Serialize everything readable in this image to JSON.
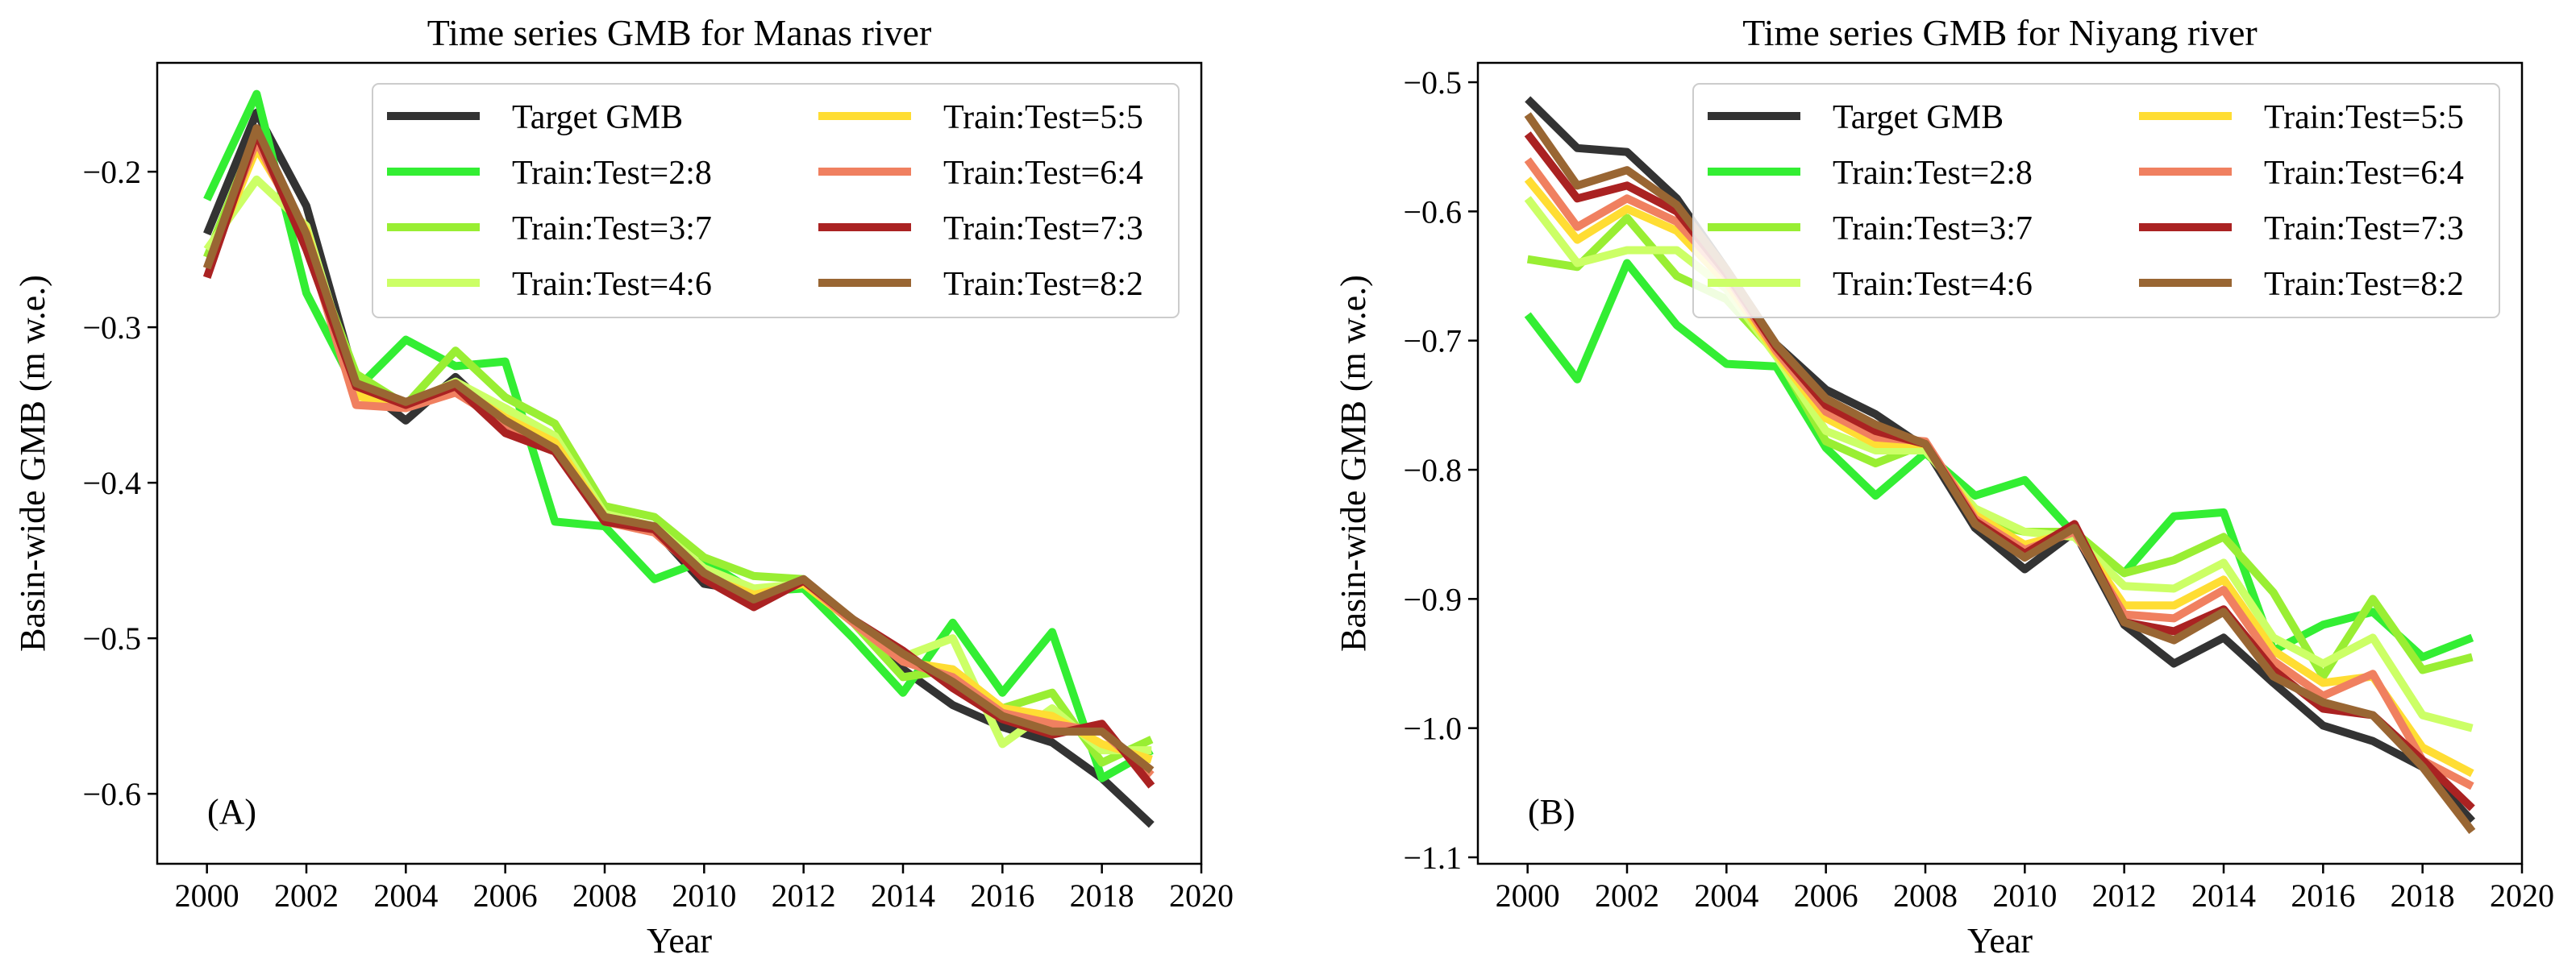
{
  "chart_data": [
    {
      "type": "line",
      "title": "Time series GMB for Manas river",
      "xlabel": "Year",
      "ylabel": "Basin-wide GMB (m w.e.)",
      "panel_label": "(A)",
      "xlim": [
        1999,
        2020
      ],
      "ylim": [
        -0.645,
        -0.13
      ],
      "xticks": [
        2000,
        2002,
        2004,
        2006,
        2008,
        2010,
        2012,
        2014,
        2016,
        2018,
        2020
      ],
      "xtick_labels": [
        "2000",
        "2002",
        "2004",
        "2006",
        "2008",
        "2010",
        "2012",
        "2014",
        "2016",
        "2018",
        "2020"
      ],
      "yticks": [
        -0.6,
        -0.5,
        -0.4,
        -0.3,
        -0.2
      ],
      "ytick_labels": [
        "−0.6",
        "−0.5",
        "−0.4",
        "−0.3",
        "−0.2"
      ],
      "grid": false,
      "legend_position": "top-right",
      "legend_columns": 2,
      "x": [
        2000,
        2001,
        2002,
        2003,
        2004,
        2005,
        2006,
        2007,
        2008,
        2009,
        2010,
        2011,
        2012,
        2013,
        2014,
        2015,
        2016,
        2017,
        2018,
        2019
      ],
      "series": [
        {
          "name": "Target GMB",
          "color": "#333333",
          "values": [
            -0.24,
            -0.162,
            -0.222,
            -0.335,
            -0.36,
            -0.332,
            -0.362,
            -0.38,
            -0.42,
            -0.43,
            -0.465,
            -0.47,
            -0.465,
            -0.49,
            -0.52,
            -0.543,
            -0.557,
            -0.567,
            -0.59,
            -0.62
          ]
        },
        {
          "name": "Train:Test=2:8",
          "color": "#33ee33",
          "values": [
            -0.218,
            -0.15,
            -0.278,
            -0.34,
            -0.308,
            -0.325,
            -0.322,
            -0.425,
            -0.428,
            -0.462,
            -0.45,
            -0.47,
            -0.468,
            -0.5,
            -0.535,
            -0.49,
            -0.535,
            -0.496,
            -0.59,
            -0.572
          ]
        },
        {
          "name": "Train:Test=3:7",
          "color": "#99ee33",
          "values": [
            -0.255,
            -0.175,
            -0.245,
            -0.33,
            -0.35,
            -0.315,
            -0.345,
            -0.362,
            -0.415,
            -0.422,
            -0.448,
            -0.46,
            -0.462,
            -0.49,
            -0.525,
            -0.52,
            -0.545,
            -0.535,
            -0.58,
            -0.565
          ]
        },
        {
          "name": "Train:Test=4:6",
          "color": "#ccff66",
          "values": [
            -0.25,
            -0.205,
            -0.235,
            -0.34,
            -0.35,
            -0.335,
            -0.352,
            -0.37,
            -0.42,
            -0.428,
            -0.455,
            -0.468,
            -0.465,
            -0.488,
            -0.512,
            -0.5,
            -0.568,
            -0.545,
            -0.572,
            -0.572
          ]
        },
        {
          "name": "Train:Test=5:5",
          "color": "#ffdd33",
          "values": [
            -0.262,
            -0.185,
            -0.238,
            -0.344,
            -0.352,
            -0.338,
            -0.358,
            -0.374,
            -0.422,
            -0.43,
            -0.46,
            -0.472,
            -0.465,
            -0.49,
            -0.515,
            -0.52,
            -0.545,
            -0.55,
            -0.568,
            -0.578
          ]
        },
        {
          "name": "Train:Test=6:4",
          "color": "#f08060",
          "values": [
            -0.262,
            -0.18,
            -0.245,
            -0.35,
            -0.352,
            -0.342,
            -0.362,
            -0.378,
            -0.425,
            -0.432,
            -0.46,
            -0.478,
            -0.463,
            -0.49,
            -0.515,
            -0.525,
            -0.548,
            -0.555,
            -0.56,
            -0.588
          ]
        },
        {
          "name": "Train:Test=7:3",
          "color": "#aa2222",
          "values": [
            -0.268,
            -0.175,
            -0.25,
            -0.338,
            -0.35,
            -0.338,
            -0.368,
            -0.38,
            -0.425,
            -0.43,
            -0.462,
            -0.48,
            -0.463,
            -0.488,
            -0.508,
            -0.532,
            -0.552,
            -0.562,
            -0.555,
            -0.595
          ]
        },
        {
          "name": "Train:Test=8:2",
          "color": "#996633",
          "values": [
            -0.262,
            -0.172,
            -0.24,
            -0.336,
            -0.348,
            -0.336,
            -0.36,
            -0.378,
            -0.422,
            -0.428,
            -0.458,
            -0.475,
            -0.462,
            -0.488,
            -0.51,
            -0.528,
            -0.55,
            -0.56,
            -0.56,
            -0.585
          ]
        }
      ]
    },
    {
      "type": "line",
      "title": "Time series GMB for Niyang river",
      "xlabel": "Year",
      "ylabel": "Basin-wide GMB (m w.e.)",
      "panel_label": "(B)",
      "xlim": [
        1999,
        2020
      ],
      "ylim": [
        -1.105,
        -0.485
      ],
      "xticks": [
        2000,
        2002,
        2004,
        2006,
        2008,
        2010,
        2012,
        2014,
        2016,
        2018,
        2020
      ],
      "xtick_labels": [
        "2000",
        "2002",
        "2004",
        "2006",
        "2008",
        "2010",
        "2012",
        "2014",
        "2016",
        "2018",
        "2020"
      ],
      "yticks": [
        -1.1,
        -1.0,
        -0.9,
        -0.8,
        -0.7,
        -0.6,
        -0.5
      ],
      "ytick_labels": [
        "−1.1",
        "−1.0",
        "−0.9",
        "−0.8",
        "−0.7",
        "−0.6",
        "−0.5"
      ],
      "grid": false,
      "legend_position": "top-right",
      "legend_columns": 2,
      "x": [
        2000,
        2001,
        2002,
        2003,
        2004,
        2005,
        2006,
        2007,
        2008,
        2009,
        2010,
        2011,
        2012,
        2013,
        2014,
        2015,
        2016,
        2017,
        2018,
        2019
      ],
      "series": [
        {
          "name": "Target GMB",
          "color": "#333333",
          "values": [
            -0.513,
            -0.551,
            -0.554,
            -0.59,
            -0.645,
            -0.703,
            -0.738,
            -0.757,
            -0.783,
            -0.845,
            -0.877,
            -0.848,
            -0.92,
            -0.95,
            -0.93,
            -0.965,
            -0.998,
            -1.01,
            -1.03,
            -1.072
          ]
        },
        {
          "name": "Train:Test=2:8",
          "color": "#33ee33",
          "values": [
            -0.68,
            -0.73,
            -0.64,
            -0.688,
            -0.718,
            -0.72,
            -0.783,
            -0.82,
            -0.787,
            -0.82,
            -0.808,
            -0.85,
            -0.88,
            -0.836,
            -0.833,
            -0.94,
            -0.92,
            -0.91,
            -0.945,
            -0.93
          ]
        },
        {
          "name": "Train:Test=3:7",
          "color": "#99ee33",
          "values": [
            -0.637,
            -0.643,
            -0.605,
            -0.65,
            -0.668,
            -0.71,
            -0.778,
            -0.795,
            -0.78,
            -0.84,
            -0.848,
            -0.848,
            -0.88,
            -0.87,
            -0.852,
            -0.895,
            -0.96,
            -0.9,
            -0.955,
            -0.945
          ]
        },
        {
          "name": "Train:Test=4:6",
          "color": "#ccff66",
          "values": [
            -0.59,
            -0.64,
            -0.63,
            -0.63,
            -0.66,
            -0.712,
            -0.77,
            -0.785,
            -0.785,
            -0.83,
            -0.848,
            -0.852,
            -0.89,
            -0.892,
            -0.872,
            -0.93,
            -0.95,
            -0.93,
            -0.99,
            -1.0
          ]
        },
        {
          "name": "Train:Test=5:5",
          "color": "#ffdd33",
          "values": [
            -0.575,
            -0.622,
            -0.598,
            -0.615,
            -0.655,
            -0.71,
            -0.76,
            -0.78,
            -0.78,
            -0.835,
            -0.858,
            -0.848,
            -0.905,
            -0.905,
            -0.885,
            -0.94,
            -0.965,
            -0.96,
            -1.015,
            -1.035
          ]
        },
        {
          "name": "Train:Test=6:4",
          "color": "#f08060",
          "values": [
            -0.56,
            -0.612,
            -0.59,
            -0.608,
            -0.65,
            -0.708,
            -0.755,
            -0.775,
            -0.778,
            -0.838,
            -0.862,
            -0.848,
            -0.912,
            -0.915,
            -0.893,
            -0.948,
            -0.975,
            -0.958,
            -1.025,
            -1.045
          ]
        },
        {
          "name": "Train:Test=7:3",
          "color": "#aa2222",
          "values": [
            -0.54,
            -0.59,
            -0.58,
            -0.6,
            -0.648,
            -0.705,
            -0.75,
            -0.77,
            -0.78,
            -0.84,
            -0.865,
            -0.842,
            -0.918,
            -0.925,
            -0.908,
            -0.955,
            -0.985,
            -0.99,
            -1.025,
            -1.062
          ]
        },
        {
          "name": "Train:Test=8:2",
          "color": "#996633",
          "values": [
            -0.525,
            -0.58,
            -0.568,
            -0.595,
            -0.645,
            -0.703,
            -0.745,
            -0.765,
            -0.78,
            -0.842,
            -0.868,
            -0.845,
            -0.918,
            -0.932,
            -0.91,
            -0.96,
            -0.98,
            -0.99,
            -1.03,
            -1.08
          ]
        }
      ]
    }
  ]
}
